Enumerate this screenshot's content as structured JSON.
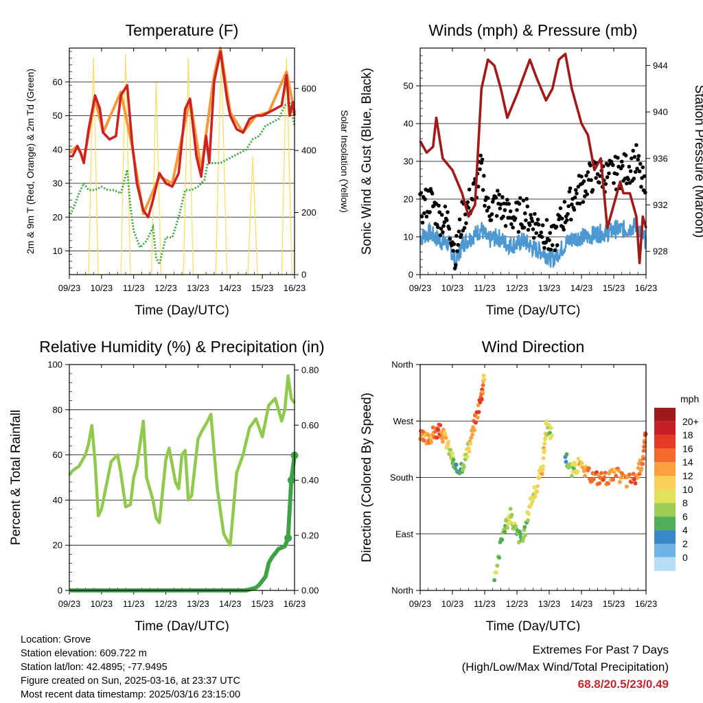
{
  "colors": {
    "t2m": "#cc2222",
    "t9m": "#f59a3c",
    "td2m": "#3aa63a",
    "solar": "#f7df6a",
    "wind": "#4d98d0",
    "gust": "#000000",
    "pressure": "#a11a1a",
    "rh": "#91c94e",
    "precip": "#3ea346"
  },
  "chart_data": [
    {
      "type": "line",
      "title": "Temperature (F)",
      "xlabel": "Time (Day/UTC)",
      "ylabel": "2m & 9m T (Red, Orange) & 2m Td (Green)",
      "y2label": "Solar Insolation (Yellow)",
      "x_ticks": [
        "09/23",
        "10/23",
        "11/23",
        "12/23",
        "13/23",
        "14/23",
        "15/23",
        "16/23"
      ],
      "xlim": [
        0,
        7
      ],
      "ylim": [
        3,
        70
      ],
      "y_ticks": [
        10,
        20,
        30,
        40,
        50,
        60
      ],
      "y2lim": [
        0,
        730
      ],
      "y2_ticks": [
        0,
        200,
        400,
        600
      ],
      "grid": "horizontal",
      "series": [
        {
          "name": "2m T",
          "axis": "y",
          "x": [
            0,
            0.1,
            0.25,
            0.35,
            0.45,
            0.6,
            0.8,
            0.95,
            1.05,
            1.25,
            1.45,
            1.6,
            1.8,
            1.95,
            2.1,
            2.2,
            2.3,
            2.45,
            2.6,
            2.8,
            3.0,
            3.2,
            3.4,
            3.6,
            3.75,
            3.95,
            4.1,
            4.25,
            4.35,
            4.5,
            4.7,
            4.9,
            5.0,
            5.2,
            5.4,
            5.6,
            5.8,
            6.0,
            6.2,
            6.4,
            6.6,
            6.75,
            6.85,
            6.95,
            7.0
          ],
          "values": [
            38,
            38,
            41,
            39,
            36,
            46,
            56,
            52,
            45,
            43,
            44,
            56,
            59,
            42,
            30,
            26,
            22,
            20,
            25,
            33,
            30,
            29,
            33,
            52,
            55,
            38,
            32,
            44,
            36,
            60,
            69,
            55,
            50,
            46,
            45,
            49,
            50,
            50,
            51,
            52,
            53,
            62,
            50,
            54,
            50
          ]
        },
        {
          "name": "9m T",
          "axis": "y",
          "x": [
            0,
            0.25,
            0.45,
            0.8,
            1.05,
            1.6,
            1.95,
            2.3,
            2.8,
            3.2,
            3.75,
            4.1,
            4.5,
            4.7,
            5.0,
            5.4,
            5.8,
            6.2,
            6.75,
            7.0
          ],
          "values": [
            39,
            41,
            37,
            55,
            45,
            57,
            41,
            21,
            32,
            30,
            55,
            34,
            62,
            70,
            51,
            45,
            50,
            51,
            63,
            51
          ]
        },
        {
          "name": "2m Td",
          "axis": "y",
          "x": [
            0,
            0.1,
            0.3,
            0.45,
            0.6,
            0.8,
            1.0,
            1.2,
            1.4,
            1.6,
            1.8,
            1.9,
            2.0,
            2.2,
            2.4,
            2.6,
            2.7,
            2.8,
            3.0,
            3.2,
            3.4,
            3.6,
            3.8,
            4.0,
            4.2,
            4.3,
            4.5,
            4.7,
            4.9,
            5.1,
            5.3,
            5.5,
            5.7,
            5.9,
            6.1,
            6.3,
            6.5,
            6.7,
            6.85,
            7.0
          ],
          "values": [
            21,
            22,
            27,
            30,
            28,
            28,
            29,
            28,
            28,
            27,
            34,
            23,
            16,
            11,
            13,
            17,
            8,
            6,
            14,
            14,
            20,
            28,
            28,
            29,
            31,
            36,
            36,
            36,
            37,
            38,
            39,
            40,
            43,
            44,
            47,
            48,
            49,
            53,
            54,
            47
          ]
        },
        {
          "name": "Solar Insolation",
          "axis": "y2",
          "x": [
            0,
            0.6,
            0.75,
            0.9,
            1.6,
            1.75,
            1.9,
            2.55,
            2.7,
            2.85,
            3.55,
            3.7,
            3.85,
            4.55,
            4.72,
            4.9,
            5.55,
            5.7,
            5.85,
            6.6,
            6.75,
            6.92,
            7.0
          ],
          "values": [
            0,
            0,
            700,
            0,
            0,
            710,
            0,
            0,
            620,
            0,
            0,
            700,
            0,
            0,
            720,
            0,
            0,
            380,
            0,
            0,
            700,
            0,
            0
          ]
        }
      ]
    },
    {
      "type": "scatter",
      "title": "Winds (mph) & Pressure (mb)",
      "xlabel": "Time (Day/UTC)",
      "ylabel": "Sonic Wind & Gust (Blue, Black)",
      "y2label": "Station Pressure (Maroon)",
      "x_ticks": [
        "09/23",
        "10/23",
        "11/23",
        "12/23",
        "13/23",
        "14/23",
        "15/23",
        "16/23"
      ],
      "xlim": [
        0,
        7
      ],
      "ylim": [
        0,
        60
      ],
      "y_ticks": [
        0,
        10,
        20,
        30,
        40,
        50
      ],
      "y2lim": [
        926,
        945.5
      ],
      "y2_ticks": [
        928,
        932,
        936,
        940,
        944
      ],
      "grid": "horizontal",
      "series": [
        {
          "name": "Sonic Wind",
          "axis": "y",
          "x": [
            0,
            0.3,
            0.6,
            0.9,
            1.1,
            1.3,
            1.6,
            1.9,
            2.1,
            2.4,
            2.7,
            3.0,
            3.2,
            3.5,
            3.8,
            4.1,
            4.3,
            4.6,
            4.9,
            5.2,
            5.5,
            5.8,
            6.1,
            6.4,
            6.7,
            6.9,
            7.0
          ],
          "values": [
            10,
            11,
            9,
            8,
            3,
            8,
            10,
            12,
            9,
            10,
            8,
            8,
            9,
            7,
            6,
            4,
            6,
            9,
            10,
            10,
            11,
            11,
            12,
            12,
            13,
            10,
            9
          ]
        },
        {
          "name": "Gust",
          "axis": "y",
          "x": [
            0,
            0.3,
            0.6,
            0.9,
            1.1,
            1.3,
            1.6,
            1.9,
            2.1,
            2.4,
            2.7,
            3.0,
            3.2,
            3.5,
            3.8,
            4.1,
            4.3,
            4.6,
            4.9,
            5.2,
            5.5,
            5.8,
            6.1,
            6.4,
            6.7,
            6.9,
            7.0
          ],
          "values": [
            17,
            20,
            15,
            14,
            5,
            15,
            20,
            28,
            17,
            19,
            16,
            15,
            17,
            14,
            12,
            8,
            13,
            18,
            22,
            25,
            27,
            26,
            27,
            28,
            30,
            24,
            20
          ]
        },
        {
          "name": "Station Pressure",
          "axis": "y2",
          "x": [
            0,
            0.2,
            0.4,
            0.5,
            0.7,
            1.0,
            1.3,
            1.5,
            1.7,
            1.9,
            2.1,
            2.3,
            2.5,
            2.7,
            3.0,
            3.2,
            3.4,
            3.6,
            3.9,
            4.1,
            4.3,
            4.5,
            4.7,
            5.0,
            5.2,
            5.4,
            5.6,
            5.8,
            6.0,
            6.2,
            6.3,
            6.5,
            6.7,
            6.8,
            6.9,
            7.0
          ],
          "values": [
            937.5,
            936.5,
            937,
            939.5,
            936,
            935,
            933,
            931,
            932,
            942,
            944.5,
            944,
            942,
            939.5,
            941.5,
            943,
            944.5,
            943,
            941,
            942,
            944.5,
            945,
            942,
            939,
            938,
            935,
            936,
            930,
            932,
            934,
            933,
            933,
            931,
            927,
            931,
            930
          ]
        }
      ]
    },
    {
      "type": "line",
      "title": "Relative Humidity (%) & Precipitation (in)",
      "xlabel": "Time (Day/UTC)",
      "ylabel": "Percent & Total Rainfall",
      "x_ticks": [
        "09/23",
        "10/23",
        "11/23",
        "12/23",
        "13/23",
        "14/23",
        "15/23",
        "16/23"
      ],
      "xlim": [
        0,
        7
      ],
      "ylim": [
        0,
        100
      ],
      "y_ticks": [
        0,
        20,
        40,
        60,
        80,
        100
      ],
      "y2lim": [
        0,
        0.82
      ],
      "y2_ticks": [
        "0.00",
        "0.20",
        "0.40",
        "0.60",
        "0.80"
      ],
      "grid": "horizontal",
      "series": [
        {
          "name": "Relative Humidity",
          "axis": "y",
          "x": [
            0,
            0.1,
            0.3,
            0.5,
            0.6,
            0.7,
            0.8,
            0.9,
            1.0,
            1.2,
            1.3,
            1.5,
            1.6,
            1.75,
            1.9,
            2.0,
            2.1,
            2.3,
            2.4,
            2.6,
            2.7,
            2.8,
            3.0,
            3.1,
            3.3,
            3.4,
            3.5,
            3.6,
            3.7,
            3.8,
            4.0,
            4.1,
            4.3,
            4.4,
            4.6,
            4.8,
            5.0,
            5.2,
            5.4,
            5.6,
            5.8,
            6.0,
            6.2,
            6.4,
            6.6,
            6.7,
            6.8,
            6.9,
            7.0
          ],
          "values": [
            51,
            53,
            55,
            60,
            65,
            73,
            57,
            33,
            36,
            50,
            57,
            60,
            52,
            37,
            38,
            50,
            55,
            75,
            50,
            40,
            32,
            30,
            58,
            63,
            48,
            45,
            60,
            62,
            40,
            42,
            67,
            70,
            75,
            78,
            45,
            25,
            20,
            52,
            60,
            72,
            76,
            68,
            82,
            85,
            75,
            80,
            95,
            85,
            83
          ]
        },
        {
          "name": "Precipitation",
          "axis": "y2",
          "x": [
            0,
            5.5,
            5.8,
            5.9,
            6.1,
            6.2,
            6.3,
            6.5,
            6.7,
            6.8,
            6.9,
            7.0
          ],
          "values": [
            0,
            0,
            0.01,
            0.02,
            0.05,
            0.1,
            0.12,
            0.15,
            0.16,
            0.19,
            0.4,
            0.49
          ]
        }
      ]
    },
    {
      "type": "scatter",
      "title": "Wind Direction",
      "xlabel": "Time (Day/UTC)",
      "ylabel": "Direction (Colored By Speed)",
      "x_ticks": [
        "09/23",
        "10/23",
        "11/23",
        "12/23",
        "13/23",
        "14/23",
        "15/23",
        "16/23"
      ],
      "xlim": [
        0,
        7
      ],
      "ylim": [
        0,
        360
      ],
      "y_ticks": [
        "North",
        "East",
        "South",
        "West",
        "North"
      ],
      "grid": "horizontal",
      "colorbar": {
        "title": "mph",
        "labels": [
          "20+",
          "18",
          "16",
          "14",
          "12",
          "10",
          "8",
          "6",
          "4",
          "2",
          "0"
        ],
        "colors": [
          "#9e1a1a",
          "#c62027",
          "#e23a26",
          "#f46a2d",
          "#faa041",
          "#fbcf57",
          "#e3e15b",
          "#9dcd56",
          "#52ae57",
          "#3a88c5",
          "#6fb5e4",
          "#b7def6"
        ]
      },
      "x": [
        0,
        0.2,
        0.4,
        0.6,
        0.8,
        1.0,
        1.1,
        1.3,
        1.5,
        1.7,
        1.9,
        2.0,
        2.3,
        2.6,
        2.8,
        3.0,
        3.2,
        3.4,
        3.6,
        3.8,
        3.9,
        4.1,
        4.3,
        4.5,
        4.7,
        4.9,
        5.2,
        5.5,
        5.8,
        6.1,
        6.4,
        6.7,
        6.9,
        7.0
      ],
      "values": [
        245,
        240,
        250,
        255,
        240,
        210,
        190,
        200,
        225,
        270,
        310,
        350,
        20,
        100,
        120,
        90,
        80,
        140,
        160,
        200,
        260,
        250,
        20,
        215,
        190,
        200,
        185,
        180,
        180,
        185,
        175,
        180,
        210,
        250
      ],
      "speeds": [
        14,
        12,
        13,
        15,
        10,
        6,
        4,
        5,
        9,
        13,
        16,
        10,
        6,
        5,
        7,
        6,
        4,
        8,
        9,
        10,
        8,
        6,
        4,
        3,
        6,
        9,
        12,
        14,
        13,
        12,
        13,
        15,
        12,
        16
      ]
    }
  ],
  "info": {
    "location": "Location: Grove",
    "elevation": "Station elevation: 609.722 m",
    "latlon": "Station lat/lon: 42.4895; -77.9495",
    "created": "Figure created on Sun, 2025-03-16, at 23:37 UTC",
    "latest": "Most recent data timestamp: 2025/03/16 23:15:00"
  },
  "extremes": {
    "title": "Extremes For Past 7 Days",
    "subtitle": "(High/Low/Max Wind/Total Precipitation)",
    "values": "68.8/20.5/23/0.49"
  }
}
